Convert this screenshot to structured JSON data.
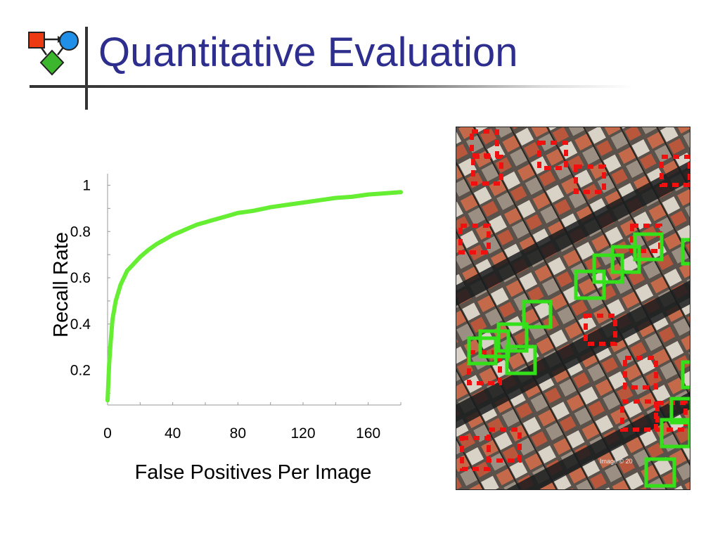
{
  "slide": {
    "title": "Quantitative Evaluation",
    "accent_color": "#2e2e8f"
  },
  "logo": {
    "icon": "flowchart-logo-icon",
    "colors": {
      "square": "#ee3a12",
      "circle": "#1f8fe8",
      "diamond": "#3cb62c"
    }
  },
  "chart_data": {
    "type": "line",
    "title": "",
    "xlabel": "False Positives Per Image",
    "ylabel": "Recall Rate",
    "xlim": [
      0,
      180
    ],
    "ylim": [
      0.05,
      1.05
    ],
    "xticks": [
      0,
      40,
      80,
      120,
      160
    ],
    "yticks": [
      0.2,
      0.4,
      0.6,
      0.8,
      1
    ],
    "xtick_labels": [
      "0",
      "40",
      "80",
      "120",
      "160"
    ],
    "ytick_labels": [
      "0.2",
      "0.4",
      "0.6",
      "0.8",
      "1"
    ],
    "grid": false,
    "legend": "none",
    "series": [
      {
        "color": "#66ee33",
        "x": [
          0,
          1,
          2,
          3,
          5,
          8,
          12,
          16,
          20,
          25,
          30,
          35,
          40,
          45,
          50,
          55,
          60,
          65,
          70,
          75,
          80,
          85,
          90,
          100,
          110,
          120,
          130,
          140,
          150,
          160,
          170,
          180
        ],
        "y": [
          0.07,
          0.23,
          0.33,
          0.42,
          0.5,
          0.57,
          0.63,
          0.66,
          0.69,
          0.72,
          0.745,
          0.765,
          0.785,
          0.8,
          0.815,
          0.83,
          0.84,
          0.85,
          0.86,
          0.87,
          0.88,
          0.885,
          0.89,
          0.905,
          0.915,
          0.925,
          0.935,
          0.945,
          0.95,
          0.96,
          0.965,
          0.97
        ]
      }
    ]
  },
  "aerial_image": {
    "watermark": "Image © 20",
    "box_colors": {
      "detection": "#33e01a",
      "ground_truth": "#f01010"
    }
  }
}
